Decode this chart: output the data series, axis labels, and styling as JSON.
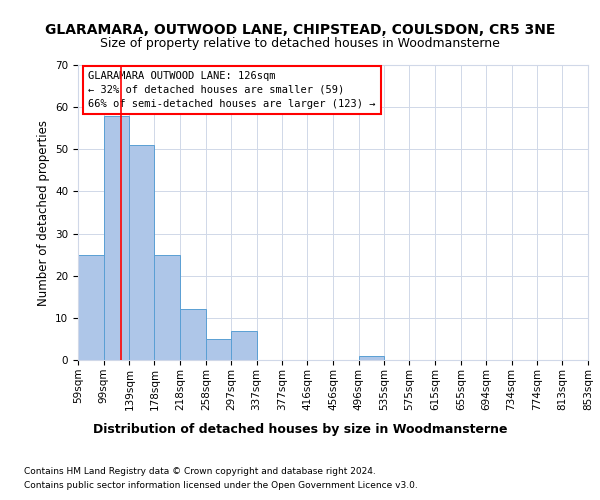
{
  "title": "GLARAMARA, OUTWOOD LANE, CHIPSTEAD, COULSDON, CR5 3NE",
  "subtitle": "Size of property relative to detached houses in Woodmansterne",
  "xlabel": "Distribution of detached houses by size in Woodmansterne",
  "ylabel": "Number of detached properties",
  "footnote1": "Contains HM Land Registry data © Crown copyright and database right 2024.",
  "footnote2": "Contains public sector information licensed under the Open Government Licence v3.0.",
  "bar_edges": [
    59,
    99,
    139,
    178,
    218,
    258,
    297,
    337,
    377,
    416,
    456,
    496,
    535,
    575,
    615,
    655,
    694,
    734,
    774,
    813,
    853
  ],
  "bar_heights": [
    25,
    58,
    51,
    25,
    12,
    5,
    7,
    0,
    0,
    0,
    0,
    1,
    0,
    0,
    0,
    0,
    0,
    0,
    0,
    0
  ],
  "bar_color": "#aec6e8",
  "bar_edge_color": "#5a9fd4",
  "red_line_x": 126,
  "ylim": [
    0,
    70
  ],
  "yticks": [
    0,
    10,
    20,
    30,
    40,
    50,
    60,
    70
  ],
  "annotation_title": "GLARAMARA OUTWOOD LANE: 126sqm",
  "annotation_line1": "← 32% of detached houses are smaller (59)",
  "annotation_line2": "66% of semi-detached houses are larger (123) →",
  "title_fontsize": 10,
  "subtitle_fontsize": 9,
  "xlabel_fontsize": 9,
  "ylabel_fontsize": 8.5,
  "tick_fontsize": 7.5,
  "annotation_fontsize": 7.5,
  "footnote_fontsize": 6.5,
  "background_color": "#ffffff",
  "grid_color": "#d0d8e8"
}
